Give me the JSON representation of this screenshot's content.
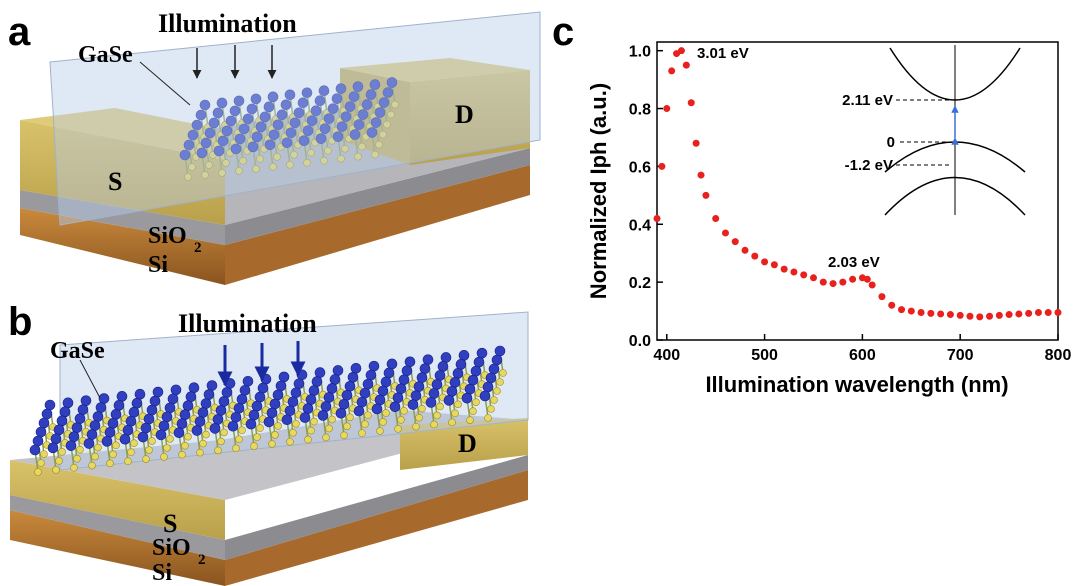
{
  "panels": {
    "a": {
      "label": "a",
      "illumination": "Illumination",
      "material": "GaSe",
      "source": "S",
      "drain": "D",
      "oxide": "SiO",
      "oxide_sub": "2",
      "substrate": "Si"
    },
    "b": {
      "label": "b",
      "illumination": "Illumination",
      "material": "GaSe",
      "source": "S",
      "drain": "D",
      "oxide": "SiO",
      "oxide_sub": "2",
      "substrate": "Si"
    },
    "c": {
      "label": "c"
    }
  },
  "chart_data": {
    "type": "scatter",
    "xlabel": "Illumination wavelength (nm)",
    "ylabel": "Normalized Iph (a.u.)",
    "x": [
      390,
      395,
      400,
      405,
      410,
      415,
      420,
      425,
      430,
      435,
      440,
      450,
      460,
      470,
      480,
      490,
      500,
      510,
      520,
      530,
      540,
      550,
      560,
      570,
      580,
      590,
      600,
      605,
      610,
      620,
      630,
      640,
      650,
      660,
      670,
      680,
      690,
      700,
      710,
      720,
      730,
      740,
      750,
      760,
      770,
      780,
      790,
      800
    ],
    "values": [
      0.42,
      0.6,
      0.8,
      0.93,
      0.99,
      1.0,
      0.95,
      0.82,
      0.68,
      0.57,
      0.5,
      0.42,
      0.37,
      0.34,
      0.31,
      0.29,
      0.27,
      0.26,
      0.245,
      0.235,
      0.225,
      0.215,
      0.2,
      0.195,
      0.2,
      0.21,
      0.215,
      0.21,
      0.19,
      0.15,
      0.12,
      0.105,
      0.1,
      0.095,
      0.092,
      0.09,
      0.088,
      0.085,
      0.082,
      0.08,
      0.082,
      0.085,
      0.088,
      0.09,
      0.092,
      0.095,
      0.095,
      0.095
    ],
    "color": "#e8201e",
    "xlim": [
      390,
      800
    ],
    "ylim": [
      0,
      1.03
    ],
    "xticks": [
      400,
      500,
      600,
      700,
      800
    ],
    "yticks": [
      {
        "value": 0,
        "label": "0.0"
      },
      0.2,
      0.4,
      0.6,
      0.8,
      {
        "value": 1,
        "label": "1.0"
      }
    ],
    "annotations": [
      "3.01 eV",
      "2.03 eV"
    ],
    "inset": {
      "labels": [
        "2.11 eV",
        "0",
        "-1.2 eV"
      ]
    }
  }
}
